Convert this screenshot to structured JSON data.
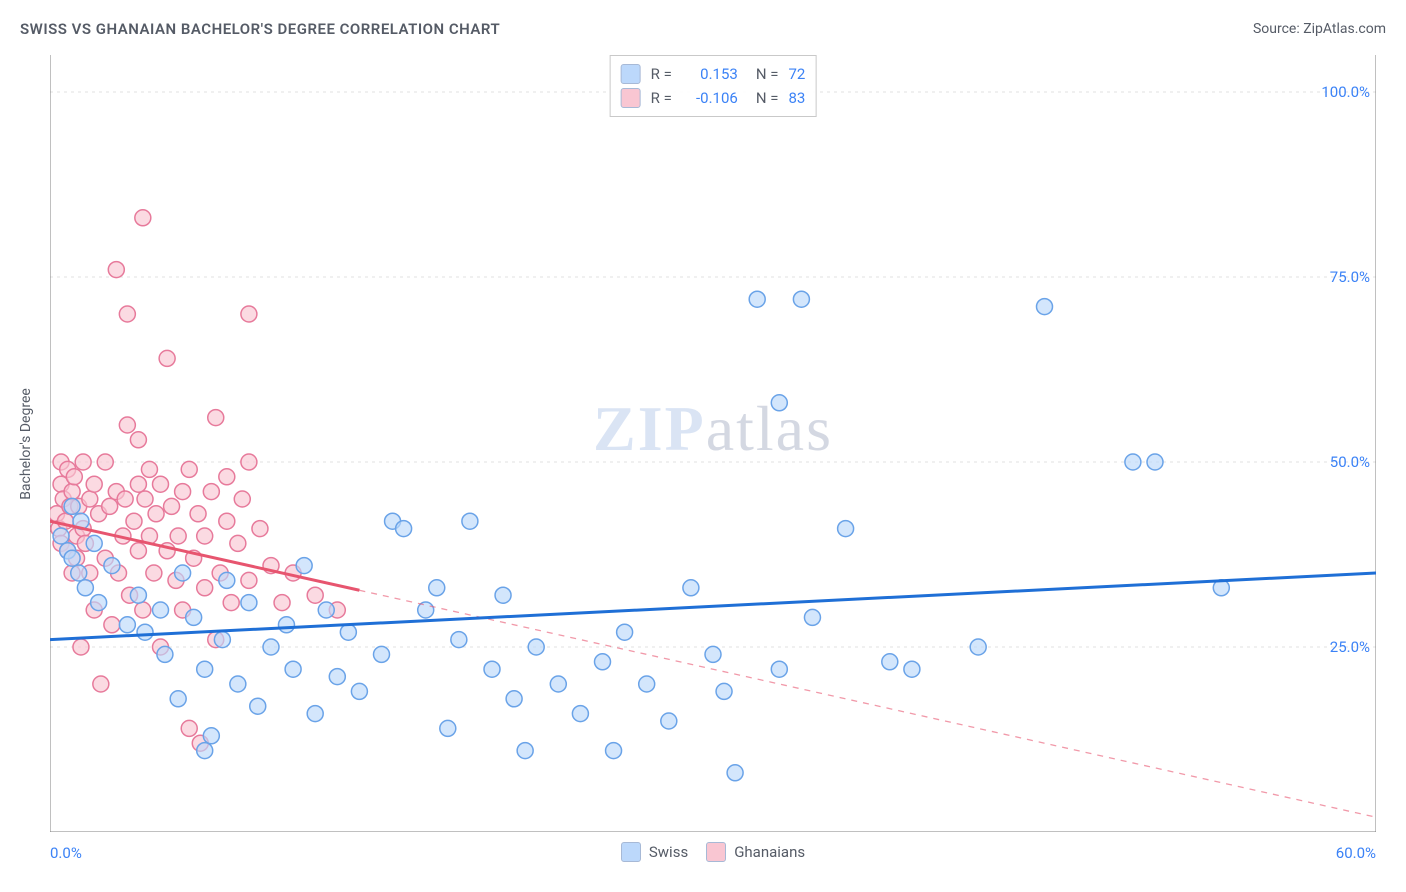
{
  "title": "SWISS VS GHANAIAN BACHELOR'S DEGREE CORRELATION CHART",
  "source_label": "Source: ZipAtlas.com",
  "watermark": {
    "left": "ZIP",
    "right": "atlas"
  },
  "ylabel": "Bachelor's Degree",
  "chart": {
    "type": "scatter",
    "background_color": "#ffffff",
    "grid_color": "#e2e2e2",
    "axis_color": "#808080",
    "axis_label_color": "#3b82f6",
    "text_color": "#555b66",
    "x": {
      "min": 0,
      "max": 60,
      "ticks_every": 5,
      "label_min": "0.0%",
      "label_max": "60.0%"
    },
    "y": {
      "min": 0,
      "max": 105,
      "gridlines": [
        25,
        50,
        75,
        100
      ],
      "labels": {
        "25": "25.0%",
        "50": "50.0%",
        "75": "75.0%",
        "100": "100.0%"
      }
    },
    "marker_radius": 8,
    "marker_stroke_width": 1.5,
    "trend_stroke_width": 3,
    "series": {
      "swiss": {
        "label": "Swiss",
        "fill": "#bcd8fb",
        "stroke": "#6aa3e8",
        "trend_color": "#1f6fd6",
        "trend_solid_until_x": 60,
        "trend": {
          "y_at_xmin": 26,
          "y_at_xmax": 35
        },
        "r": "0.153",
        "n": "72",
        "points": [
          [
            0.5,
            40
          ],
          [
            0.8,
            38
          ],
          [
            1.0,
            44
          ],
          [
            1.0,
            37
          ],
          [
            1.3,
            35
          ],
          [
            1.4,
            42
          ],
          [
            1.6,
            33
          ],
          [
            2.0,
            39
          ],
          [
            2.2,
            31
          ],
          [
            2.8,
            36
          ],
          [
            3.5,
            28
          ],
          [
            4.0,
            32
          ],
          [
            4.3,
            27
          ],
          [
            5.0,
            30
          ],
          [
            5.2,
            24
          ],
          [
            5.8,
            18
          ],
          [
            6.0,
            35
          ],
          [
            6.5,
            29
          ],
          [
            7.0,
            22
          ],
          [
            7.0,
            11
          ],
          [
            7.3,
            13
          ],
          [
            7.8,
            26
          ],
          [
            8.0,
            34
          ],
          [
            8.5,
            20
          ],
          [
            9.0,
            31
          ],
          [
            9.4,
            17
          ],
          [
            10.0,
            25
          ],
          [
            10.7,
            28
          ],
          [
            11.0,
            22
          ],
          [
            11.5,
            36
          ],
          [
            12.0,
            16
          ],
          [
            12.5,
            30
          ],
          [
            13.0,
            21
          ],
          [
            13.5,
            27
          ],
          [
            14.0,
            19
          ],
          [
            15.0,
            24
          ],
          [
            15.5,
            42
          ],
          [
            16.0,
            41
          ],
          [
            17.0,
            30
          ],
          [
            17.5,
            33
          ],
          [
            18.0,
            14
          ],
          [
            18.5,
            26
          ],
          [
            19.0,
            42
          ],
          [
            20.0,
            22
          ],
          [
            20.5,
            32
          ],
          [
            21.0,
            18
          ],
          [
            21.5,
            11
          ],
          [
            22.0,
            25
          ],
          [
            23.0,
            20
          ],
          [
            24.0,
            16
          ],
          [
            25.0,
            23
          ],
          [
            25.5,
            11
          ],
          [
            26.0,
            27
          ],
          [
            27.0,
            20
          ],
          [
            28.0,
            15
          ],
          [
            29.0,
            33
          ],
          [
            30.0,
            24
          ],
          [
            30.5,
            19
          ],
          [
            31.0,
            8
          ],
          [
            32.0,
            72
          ],
          [
            33.0,
            22
          ],
          [
            33.0,
            58
          ],
          [
            34.0,
            72
          ],
          [
            34.5,
            29
          ],
          [
            36.0,
            41
          ],
          [
            38.0,
            23
          ],
          [
            39.0,
            22
          ],
          [
            42.0,
            25
          ],
          [
            45.0,
            71
          ],
          [
            49.0,
            50
          ],
          [
            50.0,
            50
          ],
          [
            53.0,
            33
          ]
        ]
      },
      "ghanaians": {
        "label": "Ghanaians",
        "fill": "#f9c6d2",
        "stroke": "#e77a9b",
        "trend_color": "#e7556f",
        "trend_solid_until_x": 14,
        "trend": {
          "y_at_xmin": 42,
          "y_at_xmax": 2
        },
        "r": "-0.106",
        "n": "83",
        "points": [
          [
            0.3,
            43
          ],
          [
            0.4,
            41
          ],
          [
            0.5,
            47
          ],
          [
            0.5,
            50
          ],
          [
            0.5,
            39
          ],
          [
            0.6,
            45
          ],
          [
            0.7,
            42
          ],
          [
            0.8,
            49
          ],
          [
            0.8,
            38
          ],
          [
            0.9,
            44
          ],
          [
            1.0,
            46
          ],
          [
            1.0,
            35
          ],
          [
            1.1,
            48
          ],
          [
            1.2,
            40
          ],
          [
            1.2,
            37
          ],
          [
            1.3,
            44
          ],
          [
            1.4,
            25
          ],
          [
            1.5,
            41
          ],
          [
            1.5,
            50
          ],
          [
            1.6,
            39
          ],
          [
            1.8,
            45
          ],
          [
            1.8,
            35
          ],
          [
            2.0,
            47
          ],
          [
            2.0,
            30
          ],
          [
            2.2,
            43
          ],
          [
            2.3,
            20
          ],
          [
            2.5,
            50
          ],
          [
            2.5,
            37
          ],
          [
            2.7,
            44
          ],
          [
            2.8,
            28
          ],
          [
            3.0,
            46
          ],
          [
            3.0,
            76
          ],
          [
            3.1,
            35
          ],
          [
            3.3,
            40
          ],
          [
            3.4,
            45
          ],
          [
            3.5,
            70
          ],
          [
            3.5,
            55
          ],
          [
            3.6,
            32
          ],
          [
            3.8,
            42
          ],
          [
            4.0,
            47
          ],
          [
            4.0,
            53
          ],
          [
            4.0,
            38
          ],
          [
            4.2,
            83
          ],
          [
            4.2,
            30
          ],
          [
            4.3,
            45
          ],
          [
            4.5,
            40
          ],
          [
            4.5,
            49
          ],
          [
            4.7,
            35
          ],
          [
            4.8,
            43
          ],
          [
            5.0,
            47
          ],
          [
            5.0,
            25
          ],
          [
            5.3,
            64
          ],
          [
            5.3,
            38
          ],
          [
            5.5,
            44
          ],
          [
            5.7,
            34
          ],
          [
            5.8,
            40
          ],
          [
            6.0,
            46
          ],
          [
            6.0,
            30
          ],
          [
            6.3,
            49
          ],
          [
            6.3,
            14
          ],
          [
            6.5,
            37
          ],
          [
            6.7,
            43
          ],
          [
            6.8,
            12
          ],
          [
            7.0,
            40
          ],
          [
            7.0,
            33
          ],
          [
            7.3,
            46
          ],
          [
            7.5,
            26
          ],
          [
            7.5,
            56
          ],
          [
            7.7,
            35
          ],
          [
            8.0,
            42
          ],
          [
            8.0,
            48
          ],
          [
            8.2,
            31
          ],
          [
            8.5,
            39
          ],
          [
            8.7,
            45
          ],
          [
            9.0,
            34
          ],
          [
            9.0,
            50
          ],
          [
            9.0,
            70
          ],
          [
            9.5,
            41
          ],
          [
            10.0,
            36
          ],
          [
            10.5,
            31
          ],
          [
            11.0,
            35
          ],
          [
            12.0,
            32
          ],
          [
            13.0,
            30
          ]
        ]
      }
    },
    "stats_legend": {
      "r_label": "R =",
      "n_label": "N =",
      "swatch_border": "#a7b9d6"
    },
    "bottom_legend": {
      "swatch_border": "#95a8c9"
    }
  }
}
